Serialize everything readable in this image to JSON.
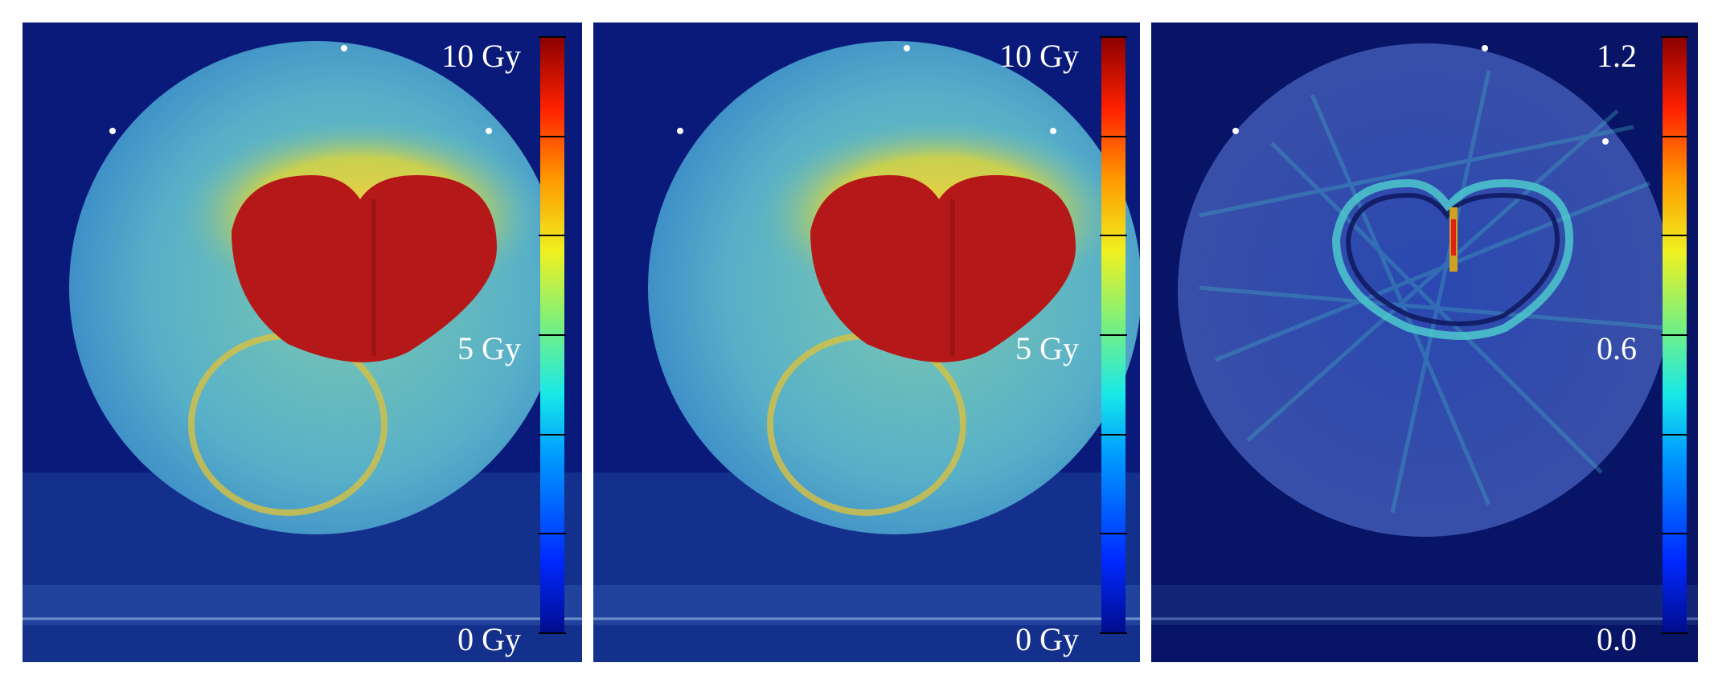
{
  "panels": [
    {
      "id": "dose-reference",
      "colorbar": {
        "top_label": "10 Gy",
        "mid_label": "5 Gy",
        "bottom_label": "0 Gy"
      }
    },
    {
      "id": "dose-comparison",
      "colorbar": {
        "top_label": "10 Gy",
        "mid_label": "5 Gy",
        "bottom_label": "0 Gy"
      }
    },
    {
      "id": "difference-map",
      "colorbar": {
        "top_label": "1.2",
        "mid_label": "0.6",
        "bottom_label": "0.0"
      }
    }
  ],
  "colors": {
    "background": "#0a1a78",
    "phantom_fill": "#4fa8c8",
    "hot_region": "#b01818",
    "warm_region": "#d8c040",
    "difference_phantom": "#2a3f9a"
  }
}
